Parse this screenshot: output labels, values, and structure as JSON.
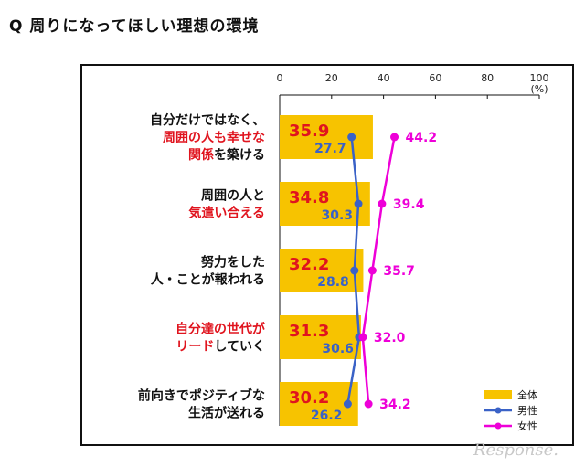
{
  "title": "Q 周りになってほしい理想の環境",
  "watermark": "Response.",
  "chart_data": {
    "type": "bar",
    "orientation": "horizontal",
    "title": "Q 周りになってほしい理想の環境",
    "unit": "(%)",
    "xlim": [
      0,
      100
    ],
    "ticks": [
      "0",
      "20",
      "40",
      "60",
      "80",
      "100"
    ],
    "categories": [
      {
        "parts": [
          {
            "text": "自分だけではなく、",
            "red": false
          },
          {
            "text": "周囲の人も幸せな",
            "red": true
          },
          {
            "text": "関係",
            "red": true
          },
          {
            "text": "を築ける",
            "red": false
          }
        ],
        "lines": [
          [
            0
          ],
          [
            1
          ],
          [
            2,
            3
          ]
        ]
      },
      {
        "parts": [
          {
            "text": "周囲の人と",
            "red": false
          },
          {
            "text": "気遣い合える",
            "red": true
          }
        ],
        "lines": [
          [
            0
          ],
          [
            1
          ]
        ]
      },
      {
        "parts": [
          {
            "text": "努力をした",
            "red": false
          },
          {
            "text": "人・ことが報われる",
            "red": false
          }
        ],
        "lines": [
          [
            0
          ],
          [
            1
          ]
        ]
      },
      {
        "parts": [
          {
            "text": "自分達の世代が",
            "red": true
          },
          {
            "text": "リード",
            "red": true
          },
          {
            "text": "していく",
            "red": false
          }
        ],
        "lines": [
          [
            0
          ],
          [
            1,
            2
          ]
        ]
      },
      {
        "parts": [
          {
            "text": "前向きでポジティブな",
            "red": false
          },
          {
            "text": "生活が送れる",
            "red": false
          }
        ],
        "lines": [
          [
            0
          ],
          [
            1
          ]
        ]
      }
    ],
    "series": [
      {
        "name": "全体",
        "kind": "bar",
        "color": "#f7c300",
        "values": [
          35.9,
          34.8,
          32.2,
          31.3,
          30.2
        ],
        "labels": [
          "35.9",
          "34.8",
          "32.2",
          "31.3",
          "30.2"
        ]
      },
      {
        "name": "男性",
        "kind": "line",
        "color": "#3a62c7",
        "values": [
          27.7,
          30.3,
          28.8,
          30.6,
          26.2
        ],
        "labels": [
          "27.7",
          "30.3",
          "28.8",
          "30.6",
          "26.2"
        ]
      },
      {
        "name": "女性",
        "kind": "line",
        "color": "#ee00d8",
        "values": [
          44.2,
          39.4,
          35.7,
          32.0,
          34.2
        ],
        "labels": [
          "44.2",
          "39.4",
          "35.7",
          "32.0",
          "34.2"
        ]
      }
    ],
    "grid": false,
    "legend_position": "bottom-right"
  }
}
